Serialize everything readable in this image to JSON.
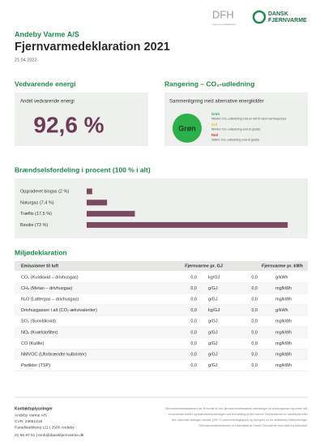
{
  "header": {
    "logo_dfh": "DFH",
    "logo_dfh_sub": "Fjernvarmedeklaration",
    "logo_df_1": "DANSK",
    "logo_df_2": "FJERNVARME",
    "company": "Andeby Varme A/S",
    "title": "Fjernvarmedeklaration 2021",
    "date": "21.04.2022"
  },
  "renewable": {
    "heading": "Vedvarende energi",
    "label": "Andel vedvarende energi",
    "value": "92,6 %"
  },
  "ranking": {
    "heading": "Rangering – CO₂-udledning",
    "label": "Sammenligning med alternative energikilder",
    "badge": "Grøn",
    "legend": [
      {
        "name": "Grøn",
        "text": "Mindre CO₂-udledning end en luft til vand varmepumpe"
      },
      {
        "name": "Gul",
        "text": "Mindre CO₂-udledning end et gasfyr"
      },
      {
        "name": "Rød",
        "text": "Større CO₂-udledning end et gasfyr"
      }
    ]
  },
  "fuel": {
    "heading": "Brændselsfordeling i procent (100 % i alt)",
    "items": [
      {
        "label": "Opgraderet biogas (2 %)",
        "value": 2
      },
      {
        "label": "Naturgas (7,4 %)",
        "value": 7.4
      },
      {
        "label": "Træflis (17,5 %)",
        "value": 17.5
      },
      {
        "label": "Bioolie (73 %)",
        "value": 73
      }
    ]
  },
  "table": {
    "heading": "Miljødeklaration",
    "columns": [
      "Emissioner til luft",
      "Fjernvarme pr. GJ",
      "Fjernvarme pr. kWh"
    ],
    "rows": [
      [
        "CO₂ (Kuldioxid – drivhusgas)",
        "0,0",
        "kg/GJ",
        "0,0",
        "g/kWh"
      ],
      [
        "CH₄ (Metan – drivhusgas)",
        "0,0",
        "g/GJ",
        "0,0",
        "mg/kWh"
      ],
      [
        "N₂O (Lattergas – drivhusgas)",
        "0,0",
        "g/GJ",
        "0,0",
        "mg/kWh"
      ],
      [
        "Drivhusgasser i alt (CO₂-ækvivalenter)",
        "0,0",
        "kg/GJ",
        "0,0",
        "g/kWh"
      ],
      [
        "SO₂ (Svovldioxid)",
        "0,0",
        "g/GJ",
        "0,0",
        "mg/kWh"
      ],
      [
        "NOₓ (Kvælstofilter)",
        "0,0",
        "g/GJ",
        "0,0",
        "mg/kWh"
      ],
      [
        "CO (Kulilte)",
        "0,0",
        "g/GJ",
        "0,0",
        "mg/kWh"
      ],
      [
        "NMVOC (Uforbrændte kulbrinter)",
        "0,0",
        "g/GJ",
        "0,0",
        "mg/kWh"
      ],
      [
        "Partikler (TSP)",
        "0,0",
        "g/GJ",
        "0,0",
        "mg/kWh"
      ]
    ]
  },
  "footer": {
    "contact_heading": "Kontaktoplysninger",
    "contact": [
      "Andeby Varme A/S",
      "CVR: 23651418",
      "Paradisæblevej 111  |  2500 Andeby",
      "21 56 97 51  |  emb@danskfjernvarme.dk"
    ],
    "note": [
      "Fjernvarmedeklarationen har til formål at vise fjernvarmeselskabets udledninger af drivhusgasser og andre luft-",
      "forurenende stoffer og brændselsfordelingen ved fremstilling af fjernvarme. Deklarationen er udarbejdet efter",
      "den nationale fastlagte metode (200 % varmevirkningsgrad) og beregnet ud fra selskabets indberetninger.",
      "Fjernvarmedeklarationen er udarbejdet af Dansk Fjernvarme med data fra selskabet."
    ]
  }
}
